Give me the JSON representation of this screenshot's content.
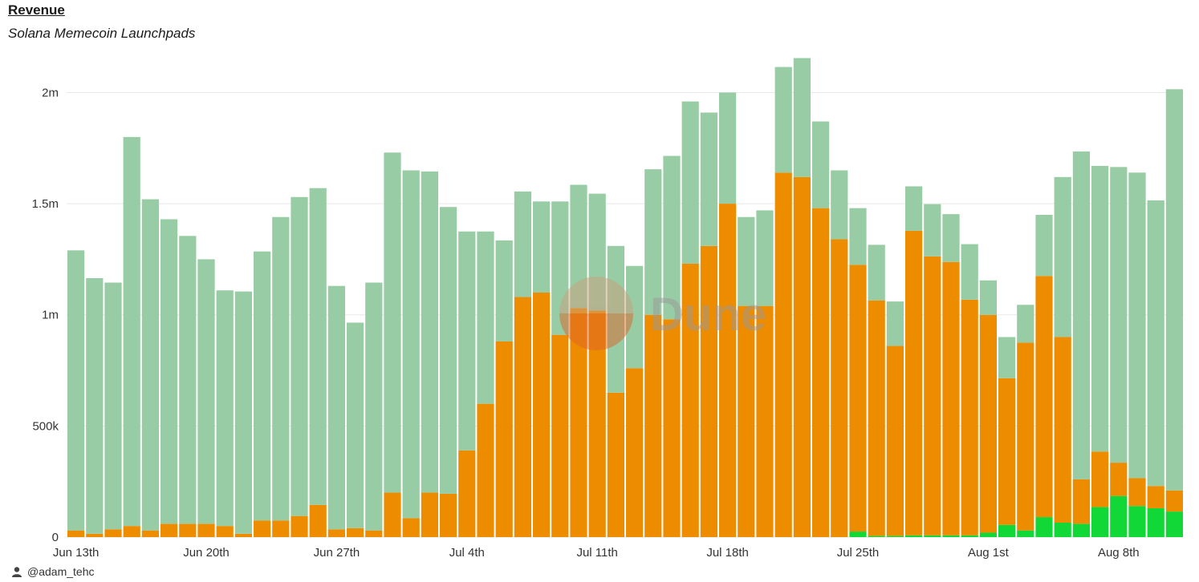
{
  "header": {
    "title": "Revenue",
    "subtitle": "Solana Memecoin Launchpads"
  },
  "watermark": {
    "text": "Dune"
  },
  "credit": {
    "handle": "@adam_tehc",
    "icon": "user-avatar-icon"
  },
  "colors": {
    "total": "#98cca4",
    "orange": "#ee8c00",
    "green": "#12d837",
    "grid": "#e8e8e8"
  },
  "chart_data": {
    "type": "bar",
    "stacked": true,
    "title": "Revenue",
    "subtitle": "Solana Memecoin Launchpads",
    "ylim": [
      0,
      2200000
    ],
    "yticks": [
      {
        "value": 0,
        "label": "0"
      },
      {
        "value": 500000,
        "label": "500k"
      },
      {
        "value": 1000000,
        "label": "1m"
      },
      {
        "value": 1500000,
        "label": "1.5m"
      },
      {
        "value": 2000000,
        "label": "2m"
      }
    ],
    "xticks": [
      {
        "index": 0,
        "label": "Jun 13th"
      },
      {
        "index": 7,
        "label": "Jun 20th"
      },
      {
        "index": 14,
        "label": "Jun 27th"
      },
      {
        "index": 21,
        "label": "Jul 4th"
      },
      {
        "index": 28,
        "label": "Jul 11th"
      },
      {
        "index": 35,
        "label": "Jul 18th"
      },
      {
        "index": 42,
        "label": "Jul 25th"
      },
      {
        "index": 49,
        "label": "Aug 1st"
      },
      {
        "index": 56,
        "label": "Aug 8th"
      }
    ],
    "categories": [
      "Jun 13",
      "Jun 14",
      "Jun 15",
      "Jun 16",
      "Jun 17",
      "Jun 18",
      "Jun 19",
      "Jun 20",
      "Jun 21",
      "Jun 22",
      "Jun 23",
      "Jun 24",
      "Jun 25",
      "Jun 26",
      "Jun 27",
      "Jun 28",
      "Jun 29",
      "Jun 30",
      "Jul 1",
      "Jul 2",
      "Jul 3",
      "Jul 4",
      "Jul 5",
      "Jul 6",
      "Jul 7",
      "Jul 8",
      "Jul 9",
      "Jul 10",
      "Jul 11",
      "Jul 12",
      "Jul 13",
      "Jul 14",
      "Jul 15",
      "Jul 16",
      "Jul 17",
      "Jul 18",
      "Jul 19",
      "Jul 20",
      "Jul 21",
      "Jul 22",
      "Jul 23",
      "Jul 24",
      "Jul 25",
      "Jul 26",
      "Jul 27",
      "Jul 28",
      "Jul 29",
      "Jul 30",
      "Jul 31",
      "Aug 1",
      "Aug 2",
      "Aug 3",
      "Aug 4",
      "Aug 5",
      "Aug 6",
      "Aug 7",
      "Aug 8",
      "Aug 9",
      "Aug 10",
      "Aug 11"
    ],
    "series": [
      {
        "color": "#12d837",
        "values": [
          0,
          0,
          0,
          0,
          0,
          0,
          0,
          0,
          0,
          0,
          0,
          0,
          0,
          0,
          0,
          0,
          0,
          0,
          0,
          0,
          0,
          0,
          0,
          0,
          0,
          0,
          0,
          0,
          0,
          0,
          0,
          0,
          0,
          0,
          0,
          0,
          0,
          0,
          0,
          0,
          0,
          0,
          25000,
          5000,
          5000,
          8000,
          8000,
          8000,
          8000,
          20000,
          55000,
          30000,
          90000,
          65000,
          60000,
          135000,
          185000,
          140000,
          130000,
          115000
        ]
      },
      {
        "color": "#ee8c00",
        "values": [
          30000,
          15000,
          35000,
          50000,
          30000,
          60000,
          60000,
          60000,
          50000,
          15000,
          75000,
          75000,
          95000,
          145000,
          35000,
          40000,
          30000,
          200000,
          85000,
          200000,
          195000,
          390000,
          600000,
          880000,
          1080000,
          1100000,
          910000,
          1030000,
          1020000,
          650000,
          760000,
          1000000,
          980000,
          1230000,
          1310000,
          1500000,
          1040000,
          1040000,
          1640000,
          1620000,
          1480000,
          1340000,
          1200000,
          1060000,
          855000,
          1370000,
          1255000,
          1230000,
          1060000,
          980000,
          660000,
          845000,
          1085000,
          835000,
          200000,
          250000,
          150000,
          125000,
          100000,
          95000
        ]
      },
      {
        "color": "#98cca4",
        "values": [
          1260000,
          1150000,
          1110000,
          1750000,
          1490000,
          1370000,
          1295000,
          1190000,
          1060000,
          1090000,
          1210000,
          1365000,
          1435000,
          1425000,
          1095000,
          925000,
          1115000,
          1530000,
          1565000,
          1445000,
          1290000,
          985000,
          775000,
          455000,
          475000,
          410000,
          600000,
          555000,
          525000,
          660000,
          460000,
          655000,
          735000,
          730000,
          600000,
          500000,
          400000,
          430000,
          475000,
          535000,
          390000,
          310000,
          255000,
          250000,
          200000,
          200000,
          235000,
          215000,
          250000,
          155000,
          185000,
          170000,
          275000,
          720000,
          1475000,
          1285000,
          1330000,
          1375000,
          1285000,
          1805000
        ]
      }
    ]
  }
}
